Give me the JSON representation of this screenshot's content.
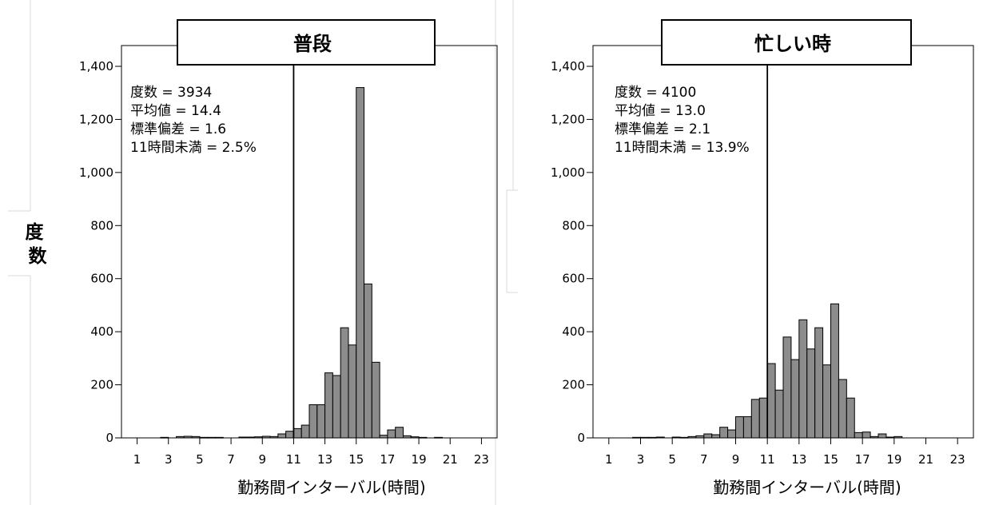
{
  "ylabel": "度数",
  "charts": [
    {
      "title": "普段",
      "stats": [
        "度数 = 3934",
        "平均値 = 14.4",
        "標準偏差 = 1.6",
        "11時間未満 = 2.5%"
      ],
      "xlabel": "勤務間インターバル(時間)"
    },
    {
      "title": "忙しい時",
      "stats": [
        "度数 = 4100",
        "平均値 = 13.0",
        "標準偏差 = 2.1",
        "11時間未満 = 13.9%"
      ],
      "xlabel": "勤務間インターバル(時間)"
    }
  ],
  "chart_data": [
    {
      "type": "bar",
      "subtype": "histogram",
      "title": "普段",
      "xlabel": "勤務間インターバル(時間)",
      "ylabel": "度数",
      "xlim": [
        0,
        24
      ],
      "ylim": [
        0,
        1400
      ],
      "yticks": [
        0,
        200,
        400,
        600,
        800,
        1000,
        1200,
        1400
      ],
      "xticks": [
        1,
        3,
        5,
        7,
        9,
        11,
        13,
        15,
        17,
        19,
        21,
        23
      ],
      "bin_width": 0.5,
      "reference_line_x": 11,
      "bins": [
        [
          2.5,
          2
        ],
        [
          3.5,
          5
        ],
        [
          4,
          6
        ],
        [
          4.5,
          5
        ],
        [
          5,
          2
        ],
        [
          5.5,
          2
        ],
        [
          6,
          2
        ],
        [
          7.5,
          3
        ],
        [
          8,
          3
        ],
        [
          8.5,
          4
        ],
        [
          9,
          6
        ],
        [
          9.5,
          5
        ],
        [
          10,
          15
        ],
        [
          10.5,
          25
        ],
        [
          11,
          35
        ],
        [
          11.5,
          48
        ],
        [
          12,
          125
        ],
        [
          12.5,
          125
        ],
        [
          13,
          245
        ],
        [
          13.5,
          235
        ],
        [
          14,
          415
        ],
        [
          14.5,
          350
        ],
        [
          15,
          1320
        ],
        [
          15.5,
          580
        ],
        [
          16,
          285
        ],
        [
          16.5,
          10
        ],
        [
          17,
          30
        ],
        [
          17.5,
          40
        ],
        [
          18,
          8
        ],
        [
          18.5,
          4
        ],
        [
          19,
          2
        ],
        [
          20,
          2
        ]
      ]
    },
    {
      "type": "bar",
      "subtype": "histogram",
      "title": "忙しい時",
      "xlabel": "勤務間インターバル(時間)",
      "ylabel": "度数",
      "xlim": [
        0,
        24
      ],
      "ylim": [
        0,
        1400
      ],
      "yticks": [
        0,
        200,
        400,
        600,
        800,
        1000,
        1200,
        1400
      ],
      "xticks": [
        1,
        3,
        5,
        7,
        9,
        11,
        13,
        15,
        17,
        19,
        21,
        23
      ],
      "bin_width": 0.5,
      "reference_line_x": 11,
      "bins": [
        [
          2.5,
          2
        ],
        [
          3,
          2
        ],
        [
          3.5,
          2
        ],
        [
          4,
          3
        ],
        [
          5,
          3
        ],
        [
          5.5,
          2
        ],
        [
          6,
          5
        ],
        [
          6.5,
          8
        ],
        [
          7,
          15
        ],
        [
          7.5,
          12
        ],
        [
          8,
          40
        ],
        [
          8.5,
          30
        ],
        [
          9,
          80
        ],
        [
          9.5,
          80
        ],
        [
          10,
          145
        ],
        [
          10.5,
          150
        ],
        [
          11,
          280
        ],
        [
          11.5,
          180
        ],
        [
          12,
          380
        ],
        [
          12.5,
          295
        ],
        [
          13,
          445
        ],
        [
          13.5,
          335
        ],
        [
          14,
          415
        ],
        [
          14.5,
          275
        ],
        [
          15,
          505
        ],
        [
          15.5,
          220
        ],
        [
          16,
          150
        ],
        [
          16.5,
          20
        ],
        [
          17,
          22
        ],
        [
          17.5,
          5
        ],
        [
          18,
          15
        ],
        [
          18.5,
          3
        ],
        [
          19,
          5
        ]
      ]
    }
  ]
}
